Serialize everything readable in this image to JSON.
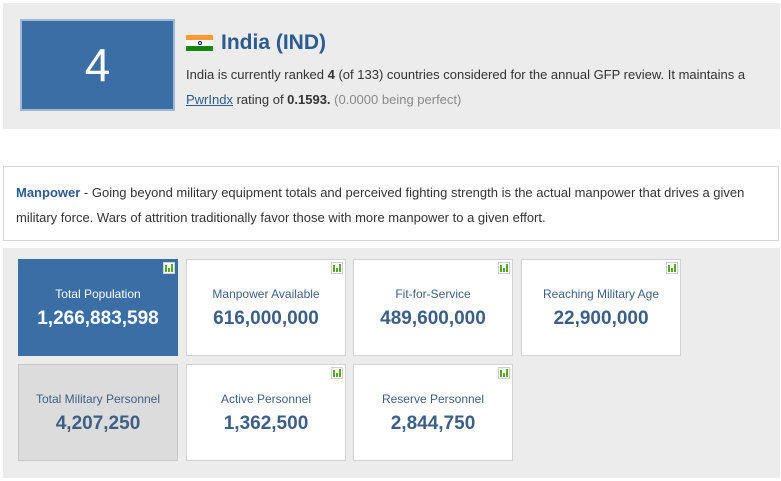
{
  "country": {
    "rank": "4",
    "name": "India (IND)",
    "flag": "india-flag-icon",
    "desc_pre": "India is currently ranked ",
    "rank_bold": "4",
    "desc_mid": " (of 133) countries considered for the annual GFP review. It maintains a ",
    "pwrindx_link": "PwrIndx",
    "desc_rating_pre": " rating of ",
    "rating": "0.1593.",
    "rating_note": " (0.0000 being perfect)"
  },
  "manpower": {
    "heading": "Manpower",
    "text": " - Going beyond military equipment totals and perceived fighting strength is the actual manpower that drives a given military force. Wars of attrition traditionally favor those with more manpower to a given effort."
  },
  "stats": [
    {
      "label": "Total Population",
      "value": "1,266,883,598",
      "style": "primary",
      "icon": "chart-icon"
    },
    {
      "label": "Manpower Available",
      "value": "616,000,000",
      "style": "normal",
      "icon": "chart-icon"
    },
    {
      "label": "Fit-for-Service",
      "value": "489,600,000",
      "style": "normal",
      "icon": "chart-icon"
    },
    {
      "label": "Reaching Military Age",
      "value": "22,900,000",
      "style": "normal",
      "icon": "chart-icon"
    },
    {
      "label": "Total Military Personnel",
      "value": "4,207,250",
      "style": "secondary",
      "icon": ""
    },
    {
      "label": "Active Personnel",
      "value": "1,362,500",
      "style": "normal",
      "icon": "chart-icon"
    },
    {
      "label": "Reserve Personnel",
      "value": "2,844,750",
      "style": "normal",
      "icon": "chart-icon"
    }
  ],
  "colors": {
    "accent": "#3a6ea5",
    "text_blue": "#2b5b8f",
    "panel_bg": "#ececec",
    "chart_green": "#5aa52c"
  }
}
